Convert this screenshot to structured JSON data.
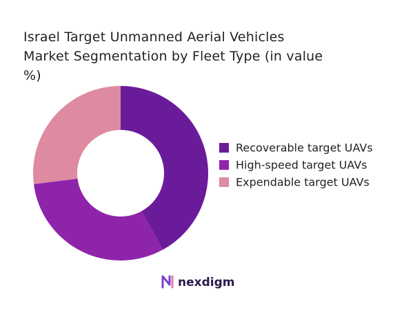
{
  "chart_data": {
    "type": "donut",
    "title": "Israel Target Unmanned Aerial Vehicles Market Segmentation by Fleet Type (in value %)",
    "categories": [
      "Recoverable target UAVs",
      "High-speed target UAVs",
      "Expendable target UAVs"
    ],
    "values": [
      42,
      31,
      27
    ],
    "colors": [
      "#6a1b9a",
      "#8e24aa",
      "#de8aa0"
    ],
    "legend": "right"
  },
  "brand": "nexdigm"
}
